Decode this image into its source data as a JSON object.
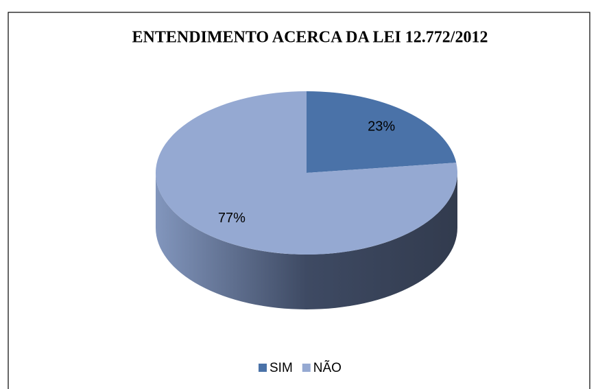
{
  "chart_data": {
    "type": "pie",
    "title": "ENTENDIMENTO ACERCA DA LEI 12.772/2012",
    "categories": [
      "SIM",
      "NÃO"
    ],
    "values": [
      23,
      77
    ],
    "value_labels": [
      "23%",
      "77%"
    ],
    "colors": [
      "#4a72a8",
      "#95a9d2"
    ],
    "legend": "bottom",
    "three_d": true
  }
}
